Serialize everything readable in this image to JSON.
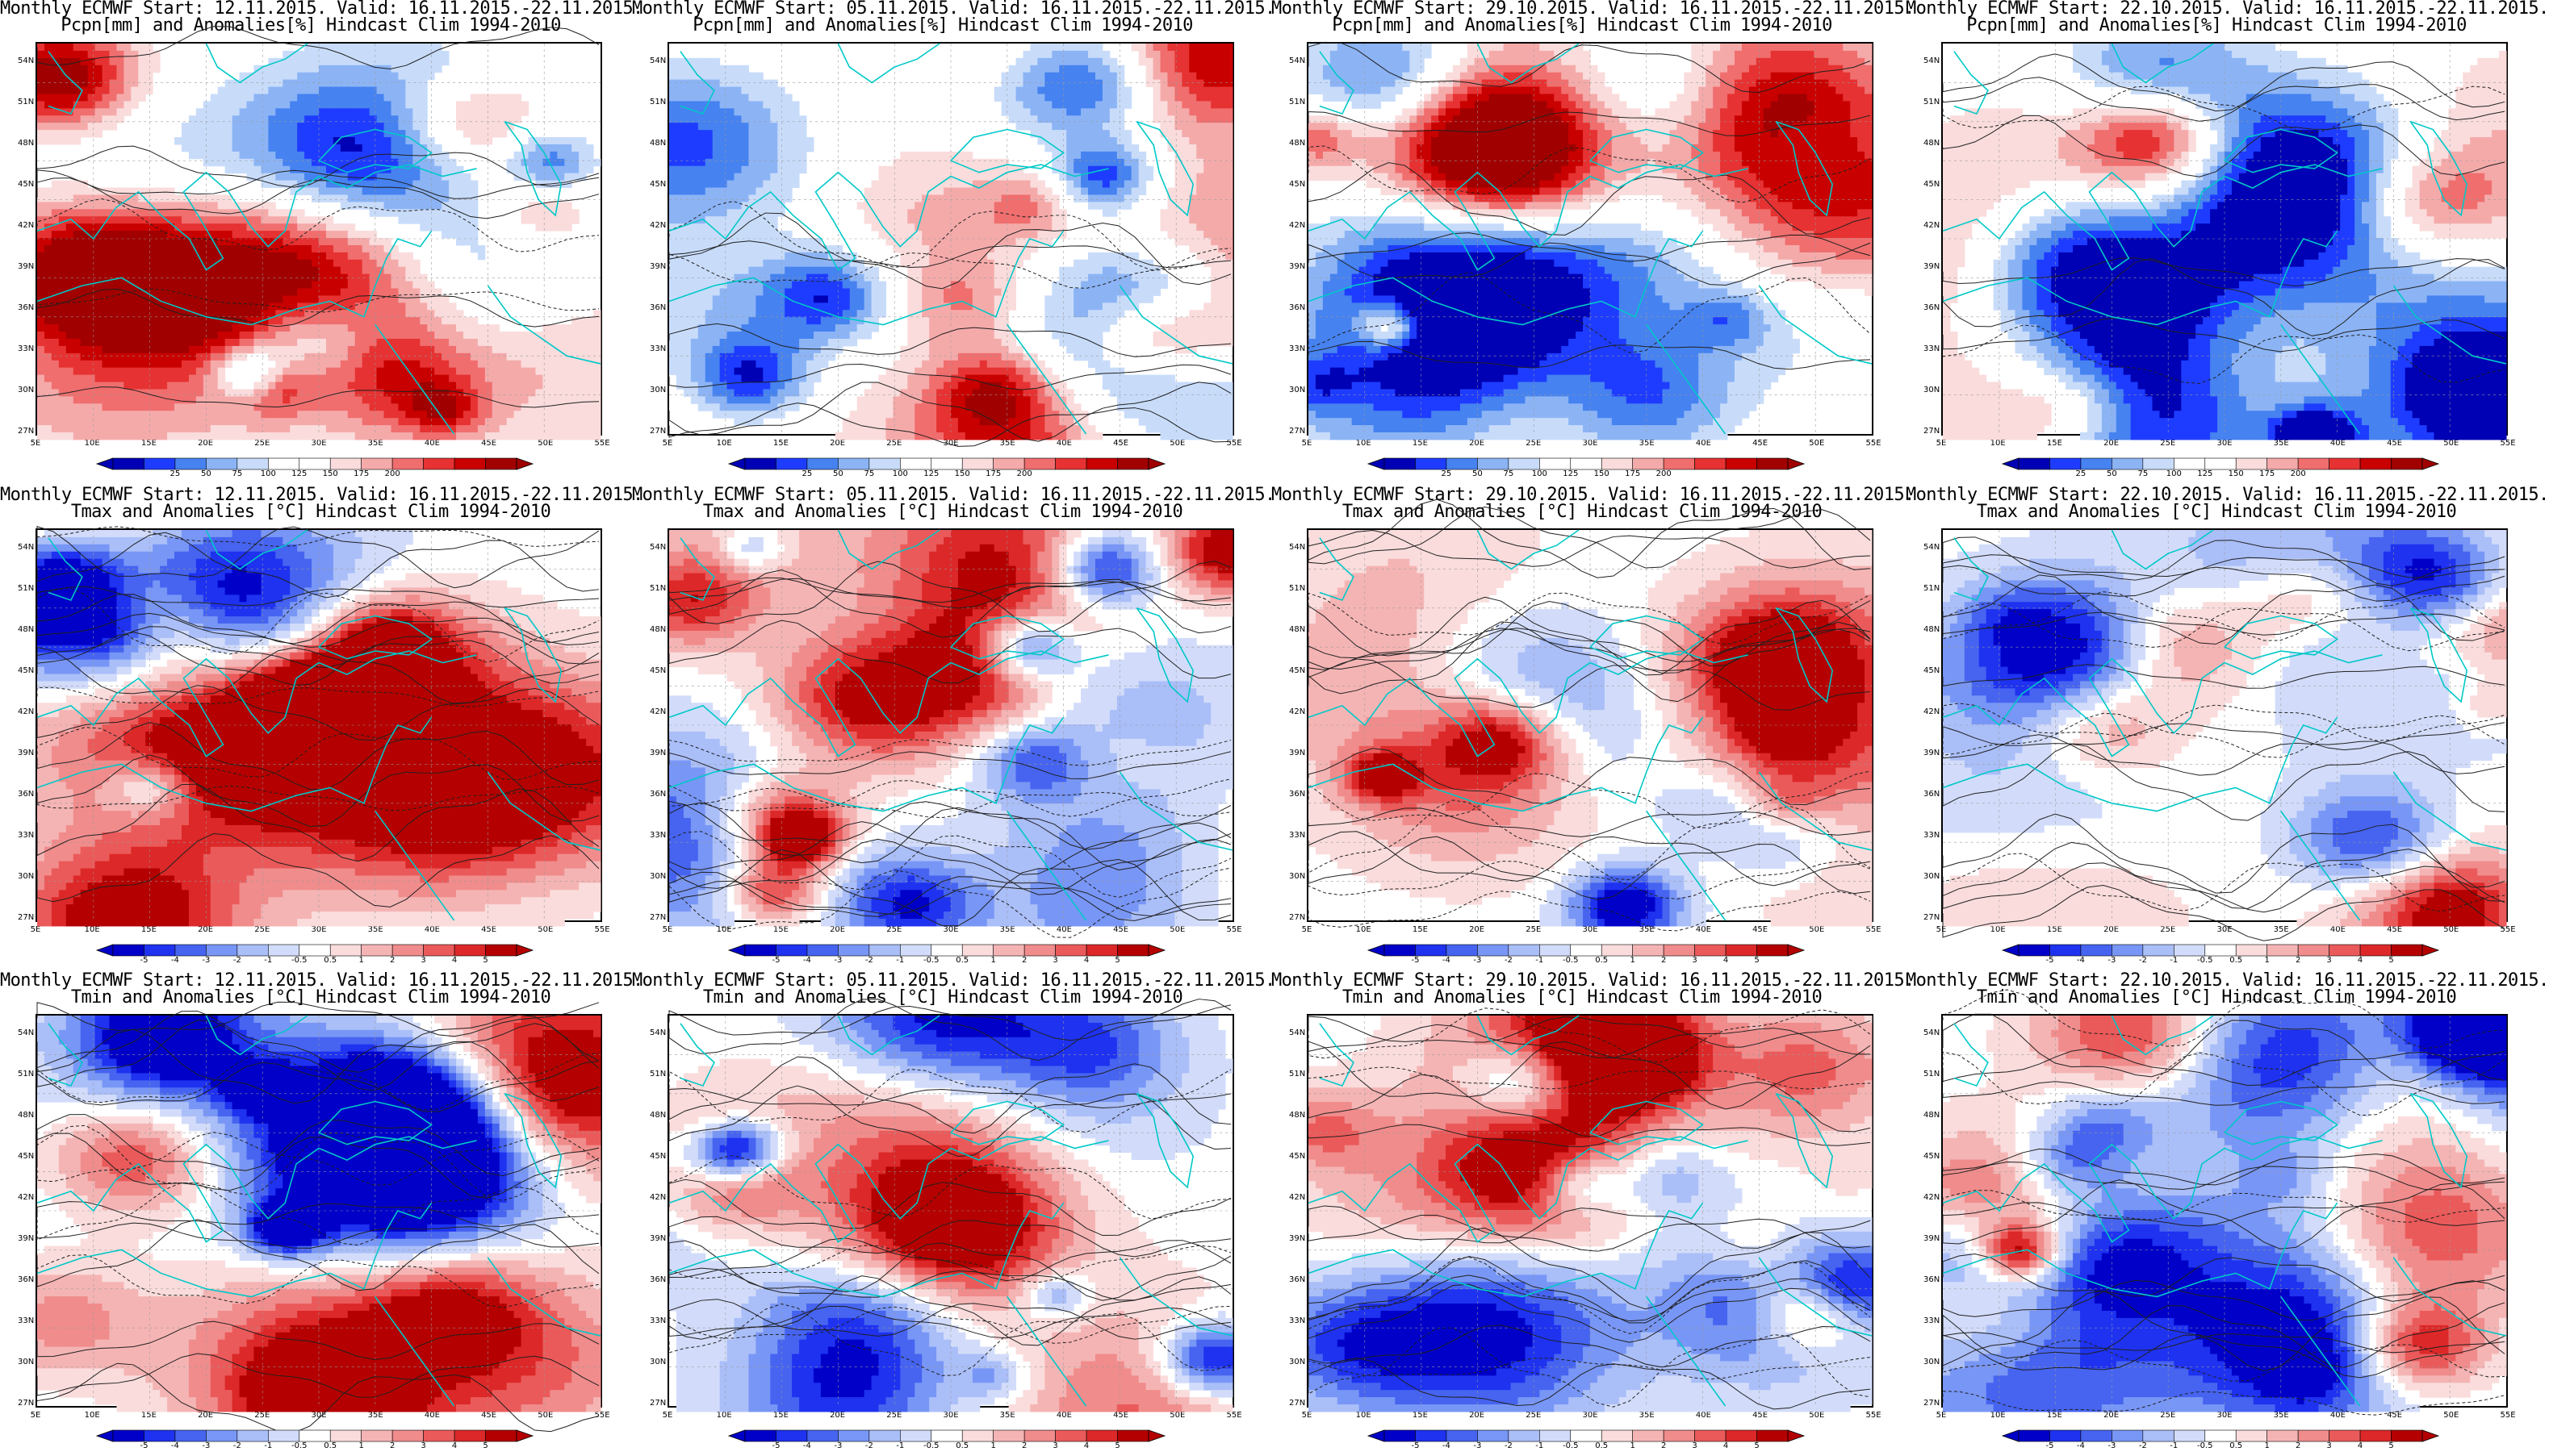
{
  "panels": [
    {
      "id": "p-r1c1",
      "row": 0,
      "col": 0,
      "title1": "Monthly ECMWF Start: 12.11.2015. Valid: 16.11.2015.-22.11.2015.",
      "title2": "Pcpn[mm] and Anomalies[%] Hindcast Clim 1994-2010",
      "variable": "precip",
      "seed": 11
    },
    {
      "id": "p-r1c2",
      "row": 0,
      "col": 1,
      "title1": "Monthly ECMWF Start: 05.11.2015. Valid: 16.11.2015.-22.11.2015.",
      "title2": "Pcpn[mm] and Anomalies[%] Hindcast Clim 1994-2010",
      "variable": "precip",
      "seed": 12
    },
    {
      "id": "p-r1c3",
      "row": 0,
      "col": 2,
      "title1": "Monthly ECMWF Start: 29.10.2015. Valid: 16.11.2015.-22.11.2015.",
      "title2": "Pcpn[mm] and Anomalies[%] Hindcast Clim 1994-2010",
      "variable": "precip",
      "seed": 13
    },
    {
      "id": "p-r1c4",
      "row": 0,
      "col": 3,
      "title1": "Monthly ECMWF Start: 22.10.2015. Valid: 16.11.2015.-22.11.2015.",
      "title2": "Pcpn[mm] and Anomalies[%] Hindcast Clim 1994-2010",
      "variable": "precip",
      "seed": 14
    },
    {
      "id": "p-r2c1",
      "row": 1,
      "col": 0,
      "title1": "Monthly ECMWF Start: 12.11.2015. Valid: 16.11.2015.-22.11.2015.",
      "title2": "Tmax and Anomalies [°C] Hindcast Clim 1994-2010",
      "variable": "temp",
      "seed": 21
    },
    {
      "id": "p-r2c2",
      "row": 1,
      "col": 1,
      "title1": "Monthly ECMWF Start: 05.11.2015. Valid: 16.11.2015.-22.11.2015.",
      "title2": "Tmax and Anomalies [°C] Hindcast Clim 1994-2010",
      "variable": "temp",
      "seed": 22
    },
    {
      "id": "p-r2c3",
      "row": 1,
      "col": 2,
      "title1": "Monthly ECMWF Start: 29.10.2015. Valid: 16.11.2015.-22.11.2015.",
      "title2": "Tmax and Anomalies [°C] Hindcast Clim 1994-2010",
      "variable": "temp",
      "seed": 23
    },
    {
      "id": "p-r2c4",
      "row": 1,
      "col": 3,
      "title1": "Monthly ECMWF Start: 22.10.2015. Valid: 16.11.2015.-22.11.2015.",
      "title2": "Tmax and Anomalies [°C] Hindcast Clim 1994-2010",
      "variable": "temp",
      "seed": 24
    },
    {
      "id": "p-r3c1",
      "row": 2,
      "col": 0,
      "title1": "Monthly ECMWF Start: 12.11.2015. Valid: 16.11.2015.-22.11.2015.",
      "title2": "Tmin and Anomalies [°C] Hindcast Clim 1994-2010",
      "variable": "temp",
      "seed": 31
    },
    {
      "id": "p-r3c2",
      "row": 2,
      "col": 1,
      "title1": "Monthly ECMWF Start: 05.11.2015. Valid: 16.11.2015.-22.11.2015.",
      "title2": "Tmin and Anomalies [°C] Hindcast Clim 1994-2010",
      "variable": "temp",
      "seed": 32
    },
    {
      "id": "p-r3c3",
      "row": 2,
      "col": 2,
      "title1": "Monthly ECMWF Start: 29.10.2015. Valid: 16.11.2015.-22.11.2015.",
      "title2": "Tmin and Anomalies [°C] Hindcast Clim 1994-2010",
      "variable": "temp",
      "seed": 33
    },
    {
      "id": "p-r3c4",
      "row": 2,
      "col": 3,
      "title1": "Monthly ECMWF Start: 22.10.2015. Valid: 16.11.2015.-22.11.2015.",
      "title2": "Tmin and Anomalies [°C] Hindcast Clim 1994-2010",
      "variable": "temp",
      "seed": 34
    }
  ],
  "lat_labels": [
    "54N",
    "51N",
    "48N",
    "45N",
    "42N",
    "39N",
    "36N",
    "33N",
    "30N",
    "27N"
  ],
  "lon_labels": [
    "5E",
    "10E",
    "15E",
    "20E",
    "25E",
    "30E",
    "35E",
    "40E",
    "45E",
    "50E",
    "55E"
  ],
  "colorbars": {
    "precip": {
      "labels": [
        "25",
        "50",
        "75",
        "100",
        "125",
        "150",
        "175",
        "200"
      ],
      "colors": [
        "#0000b4",
        "#1e3cff",
        "#4682f0",
        "#8cb4f5",
        "#c8dcfa",
        "#ffffff",
        "#ffffff",
        "#fadcdc",
        "#f5aaaa",
        "#f06e6e",
        "#e63232",
        "#c80000",
        "#a00000"
      ]
    },
    "temp": {
      "labels": [
        "-5",
        "-4",
        "-3",
        "-2",
        "-1",
        "-0.5",
        "0.5",
        "1",
        "2",
        "3",
        "4",
        "5"
      ],
      "colors": [
        "#0000c8",
        "#1e32f0",
        "#4664f0",
        "#7896f5",
        "#aabef8",
        "#d2dcfa",
        "#ffffff",
        "#fadcdc",
        "#f5b4b4",
        "#f08c8c",
        "#eb5a5a",
        "#dc2828",
        "#b40000"
      ]
    }
  },
  "colors": {
    "coastline": "#00c8c8",
    "contour": "#202020",
    "frame": "#000000"
  }
}
